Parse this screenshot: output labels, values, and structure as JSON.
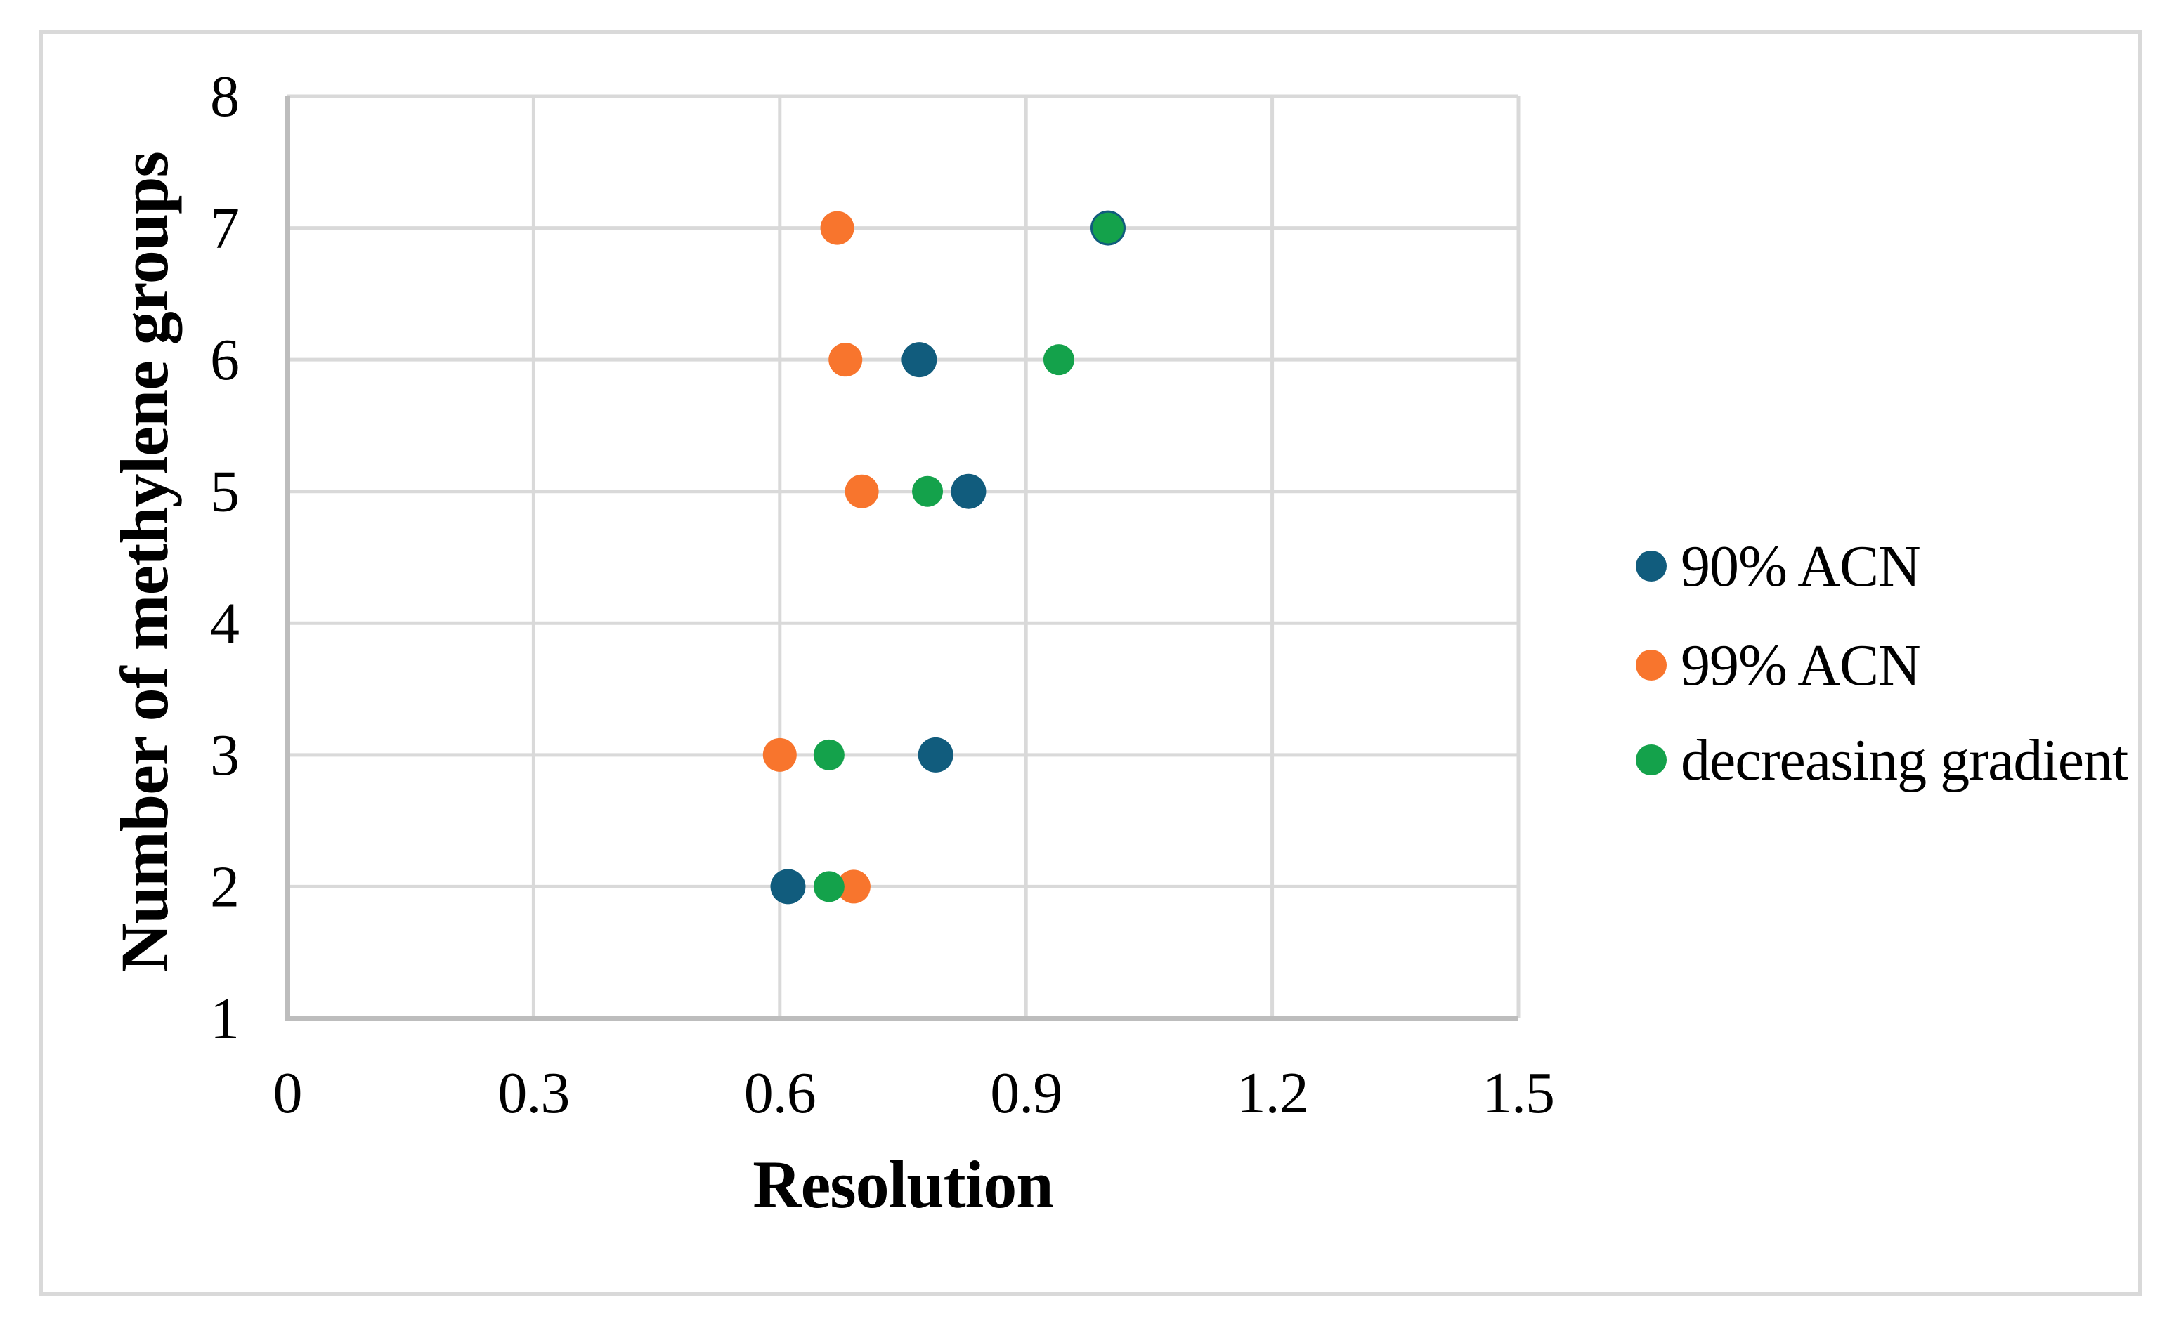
{
  "figure": {
    "background": "#FFFFFF",
    "border_color": "#D9D9D9"
  },
  "chart_data": {
    "type": "scatter",
    "title": "",
    "xlabel": "Resolution",
    "ylabel": "Number of methylene groups",
    "xlim": [
      0,
      1.5
    ],
    "ylim": [
      1,
      8
    ],
    "x_ticks": [
      0,
      0.3,
      0.6,
      0.9,
      1.2,
      1.5
    ],
    "x_tick_labels": [
      "0",
      "0.3",
      "0.6",
      "0.9",
      "1.2",
      "1.5"
    ],
    "y_ticks": [
      1,
      2,
      3,
      4,
      5,
      6,
      7,
      8
    ],
    "y_tick_labels": [
      "1",
      "2",
      "3",
      "4",
      "5",
      "6",
      "7",
      "8"
    ],
    "grid": true,
    "legend_position": "right",
    "series": [
      {
        "name": "90% ACN",
        "color": "#115C7D",
        "marker": "circle",
        "marker_radius": 25,
        "points": [
          [
            1.0,
            7
          ],
          [
            0.77,
            6
          ],
          [
            0.83,
            5
          ],
          [
            0.79,
            3
          ],
          [
            0.61,
            2
          ]
        ]
      },
      {
        "name": "99% ACN",
        "color": "#F8752D",
        "marker": "circle",
        "marker_radius": 24,
        "points": [
          [
            0.67,
            7
          ],
          [
            0.68,
            6
          ],
          [
            0.7,
            5
          ],
          [
            0.6,
            3
          ],
          [
            0.69,
            2
          ]
        ]
      },
      {
        "name": "decreasing gradient",
        "color": "#14A24B",
        "marker": "circle",
        "marker_radius": 22,
        "points": [
          [
            1.0,
            7
          ],
          [
            0.94,
            6
          ],
          [
            0.78,
            5
          ],
          [
            0.66,
            3
          ],
          [
            0.66,
            2
          ]
        ]
      }
    ],
    "colors": {
      "gridline": "#D9D9D9",
      "axis_line": "#BDBDBD",
      "text": "#000000"
    }
  }
}
